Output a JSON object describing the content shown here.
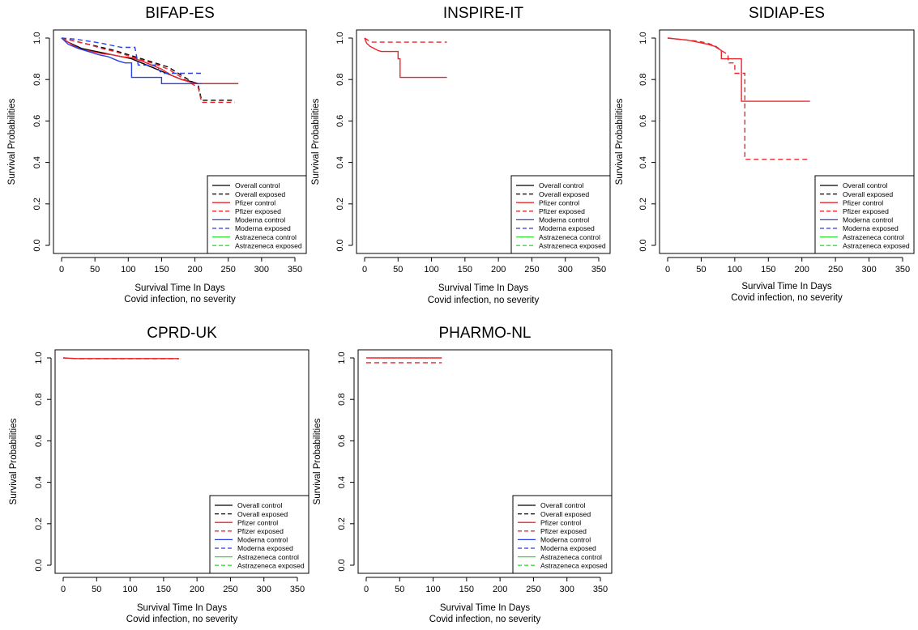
{
  "legend_entries": [
    {
      "label": "Overall control",
      "color": "#000000",
      "dash": false
    },
    {
      "label": "Overall exposed",
      "color": "#000000",
      "dash": true
    },
    {
      "label": "Pfizer control",
      "color": "#e8262b",
      "dash": false
    },
    {
      "label": "Pfizer exposed",
      "color": "#e8262b",
      "dash": true
    },
    {
      "label": "Moderna control",
      "color": "#2b3fe8",
      "dash": false
    },
    {
      "label": "Moderna exposed",
      "color": "#2b3fe8",
      "dash": true
    },
    {
      "label": "Astrazeneca control",
      "color": "#33e033",
      "dash": false
    },
    {
      "label": "Astrazeneca exposed",
      "color": "#33e033",
      "dash": true
    }
  ],
  "chart_data": [
    {
      "type": "line",
      "title": "BIFAP-ES",
      "xlabel": "Survival Time In Days",
      "xlabel2": "Covid infection, no severity",
      "ylabel": "Survival Probabilities",
      "xlim": [
        0,
        350
      ],
      "ylim": [
        0,
        1
      ],
      "xticks": [
        "0",
        "50",
        "100",
        "150",
        "200",
        "250",
        "300",
        "350"
      ],
      "yticks": [
        "0.0",
        "0.2",
        "0.4",
        "0.6",
        "0.8",
        "1.0"
      ],
      "legend_position": "bottom-right",
      "series": [
        {
          "name": "Overall control",
          "color": "#000000",
          "dash": false,
          "x": [
            0,
            10,
            20,
            30,
            45,
            60,
            75,
            90,
            105,
            120,
            135,
            150,
            165,
            180,
            195,
            205,
            265
          ],
          "y": [
            1.0,
            0.98,
            0.965,
            0.95,
            0.94,
            0.93,
            0.92,
            0.91,
            0.9,
            0.88,
            0.86,
            0.84,
            0.82,
            0.8,
            0.79,
            0.78,
            0.78
          ]
        },
        {
          "name": "Overall exposed",
          "color": "#000000",
          "dash": true,
          "x": [
            0,
            20,
            40,
            60,
            80,
            100,
            120,
            140,
            160,
            180,
            195,
            205,
            210,
            260
          ],
          "y": [
            1.0,
            0.985,
            0.97,
            0.955,
            0.94,
            0.92,
            0.9,
            0.88,
            0.86,
            0.82,
            0.79,
            0.77,
            0.7,
            0.7
          ]
        },
        {
          "name": "Pfizer control",
          "color": "#e8262b",
          "dash": false,
          "x": [
            0,
            10,
            20,
            30,
            45,
            60,
            75,
            90,
            105,
            120,
            135,
            150,
            165,
            180,
            195,
            205,
            265
          ],
          "y": [
            1.0,
            0.98,
            0.96,
            0.945,
            0.935,
            0.925,
            0.92,
            0.91,
            0.905,
            0.89,
            0.87,
            0.85,
            0.82,
            0.8,
            0.785,
            0.78,
            0.78
          ]
        },
        {
          "name": "Pfizer exposed",
          "color": "#e8262b",
          "dash": true,
          "x": [
            0,
            20,
            40,
            60,
            80,
            100,
            120,
            140,
            160,
            180,
            195,
            205,
            210,
            260
          ],
          "y": [
            1.0,
            0.985,
            0.97,
            0.95,
            0.935,
            0.915,
            0.895,
            0.875,
            0.85,
            0.81,
            0.78,
            0.76,
            0.69,
            0.69
          ]
        },
        {
          "name": "Moderna control",
          "color": "#2b3fe8",
          "dash": false,
          "x": [
            0,
            10,
            25,
            40,
            55,
            70,
            85,
            95,
            105,
            105,
            150,
            150,
            210
          ],
          "y": [
            1.0,
            0.97,
            0.95,
            0.935,
            0.92,
            0.91,
            0.89,
            0.88,
            0.88,
            0.81,
            0.81,
            0.78,
            0.78
          ]
        },
        {
          "name": "Moderna exposed",
          "color": "#2b3fe8",
          "dash": true,
          "x": [
            0,
            20,
            40,
            60,
            75,
            90,
            110,
            115,
            140,
            150,
            210
          ],
          "y": [
            1.0,
            0.995,
            0.985,
            0.975,
            0.965,
            0.955,
            0.955,
            0.87,
            0.87,
            0.83,
            0.83
          ]
        }
      ]
    },
    {
      "type": "line",
      "title": "INSPIRE-IT",
      "xlabel": "Survival Time In Days",
      "xlabel2": "Covid infection, no severity",
      "ylabel": "Survival Probabilities",
      "xlim": [
        0,
        350
      ],
      "ylim": [
        0,
        1
      ],
      "xticks": [
        "0",
        "50",
        "100",
        "150",
        "200",
        "250",
        "300",
        "350"
      ],
      "yticks": [
        "0.0",
        "0.2",
        "0.4",
        "0.6",
        "0.8",
        "1.0"
      ],
      "legend_position": "bottom-right",
      "series": [
        {
          "name": "Pfizer control",
          "color": "#e8262b",
          "dash": false,
          "x": [
            0,
            3,
            8,
            14,
            20,
            25,
            50,
            50,
            53,
            53,
            123
          ],
          "y": [
            1.0,
            0.975,
            0.96,
            0.95,
            0.94,
            0.935,
            0.935,
            0.9,
            0.9,
            0.81,
            0.81
          ]
        },
        {
          "name": "Pfizer exposed",
          "color": "#e8262b",
          "dash": true,
          "x": [
            0,
            5,
            12,
            123
          ],
          "y": [
            1.0,
            0.99,
            0.98,
            0.98
          ]
        }
      ]
    },
    {
      "type": "line",
      "title": "SIDIAP-ES",
      "xlabel": "Survival Time In Days",
      "xlabel2": "Covid infection, no severity",
      "ylabel": "Survival Probabilities",
      "xlim": [
        0,
        350
      ],
      "ylim": [
        0,
        1
      ],
      "xticks": [
        "0",
        "50",
        "100",
        "150",
        "200",
        "250",
        "300",
        "350"
      ],
      "yticks": [
        "0.0",
        "0.2",
        "0.4",
        "0.6",
        "0.8",
        "1.0"
      ],
      "legend_position": "bottom-right",
      "series": [
        {
          "name": "Pfizer control",
          "color": "#e8262b",
          "dash": false,
          "x": [
            0,
            15,
            30,
            45,
            60,
            70,
            75,
            80,
            80,
            90,
            90,
            110,
            110,
            212
          ],
          "y": [
            1.0,
            0.995,
            0.99,
            0.98,
            0.97,
            0.96,
            0.95,
            0.94,
            0.9,
            0.9,
            0.9,
            0.9,
            0.695,
            0.695
          ]
        },
        {
          "name": "Pfizer exposed",
          "color": "#e8262b",
          "dash": true,
          "x": [
            0,
            15,
            30,
            45,
            60,
            72,
            80,
            90,
            90,
            100,
            100,
            110,
            115,
            115,
            212
          ],
          "y": [
            1.0,
            0.995,
            0.99,
            0.985,
            0.975,
            0.96,
            0.94,
            0.92,
            0.88,
            0.88,
            0.83,
            0.83,
            0.83,
            0.415,
            0.415
          ]
        }
      ]
    },
    {
      "type": "line",
      "title": "CPRD-UK",
      "xlabel": "Survival Time In Days",
      "xlabel2": "Covid infection, no severity",
      "ylabel": "Survival Probabilities",
      "xlim": [
        0,
        350
      ],
      "ylim": [
        0,
        1
      ],
      "xticks": [
        "0",
        "50",
        "100",
        "150",
        "200",
        "250",
        "300",
        "350"
      ],
      "yticks": [
        "0.0",
        "0.2",
        "0.4",
        "0.6",
        "0.8",
        "1.0"
      ],
      "legend_position": "bottom-right",
      "series": [
        {
          "name": "Pfizer control",
          "color": "#e8262b",
          "dash": false,
          "x": [
            0,
            20,
            173
          ],
          "y": [
            1.0,
            0.997,
            0.997
          ]
        },
        {
          "name": "Pfizer exposed",
          "color": "#e8262b",
          "dash": true,
          "x": [
            0,
            20,
            173
          ],
          "y": [
            1.0,
            0.996,
            0.996
          ]
        }
      ]
    },
    {
      "type": "line",
      "title": "PHARMO-NL",
      "xlabel": "Survival Time In Days",
      "xlabel2": "Covid infection, no severity",
      "ylabel": "Survival Probabilities",
      "xlim": [
        0,
        350
      ],
      "ylim": [
        0,
        1
      ],
      "xticks": [
        "0",
        "50",
        "100",
        "150",
        "200",
        "250",
        "300",
        "350"
      ],
      "yticks": [
        "0.0",
        "0.2",
        "0.4",
        "0.6",
        "0.8",
        "1.0"
      ],
      "legend_position": "bottom-right",
      "series": [
        {
          "name": "Pfizer control",
          "color": "#e8262b",
          "dash": false,
          "x": [
            0,
            113
          ],
          "y": [
            1.0,
            1.0
          ]
        },
        {
          "name": "Pfizer exposed",
          "color": "#e8262b",
          "dash": true,
          "x": [
            0,
            113
          ],
          "y": [
            0.977,
            0.977
          ]
        }
      ]
    }
  ]
}
